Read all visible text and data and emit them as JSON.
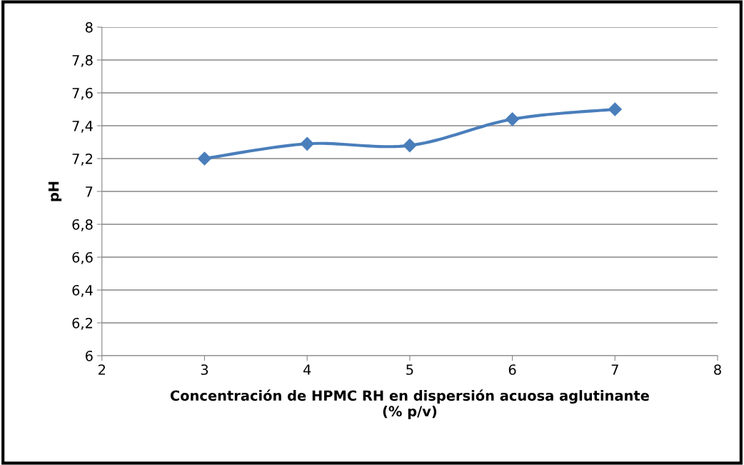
{
  "chart_data": {
    "type": "line",
    "xlabel": "Concentración de HPMC RH en dispersión acuosa aglutinante\n(% p/v)",
    "ylabel": "pH",
    "x": [
      3,
      4,
      5,
      6,
      7
    ],
    "series": [
      {
        "color": "#4a7ebb",
        "values": [
          7.2,
          7.29,
          7.28,
          7.44,
          7.5
        ]
      }
    ],
    "xlim": [
      2,
      8
    ],
    "xticks": [
      2,
      3,
      4,
      5,
      6,
      7,
      8
    ],
    "ylim": [
      6,
      8
    ],
    "yticks": [
      6,
      {
        "value": 6.2,
        "label": "6,2"
      },
      {
        "value": 6.4,
        "label": "6,4"
      },
      {
        "value": 6.6,
        "label": "6,6"
      },
      {
        "value": 6.8,
        "label": "6,8"
      },
      7,
      {
        "value": 7.2,
        "label": "7,2"
      },
      {
        "value": 7.4,
        "label": "7,4"
      },
      {
        "value": 7.6,
        "label": "7,6"
      },
      {
        "value": 7.8,
        "label": "7,8"
      },
      8
    ],
    "grid": "y",
    "marker": "diamond",
    "line_style": "solid",
    "legend": false
  }
}
